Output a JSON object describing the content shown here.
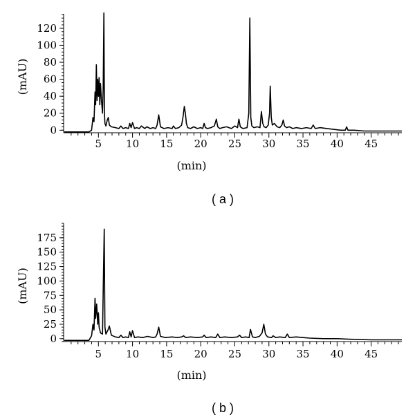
{
  "chart_data": [
    {
      "type": "line",
      "panel_label": "( a )",
      "xlabel": "(min)",
      "ylabel": "(mAU)",
      "xlim": [
        0,
        49.5
      ],
      "ylim": [
        -3,
        137
      ],
      "x_ticks": [
        5,
        10,
        15,
        20,
        25,
        30,
        35,
        40,
        45
      ],
      "y_ticks": [
        0,
        20,
        40,
        60,
        80,
        100,
        120
      ],
      "grid": false,
      "series": [
        {
          "x": [
            0,
            3.6,
            4.0,
            4.2,
            4.35,
            4.5,
            4.6,
            4.7,
            4.8,
            4.9,
            5.0,
            5.1,
            5.2,
            5.3,
            5.45,
            5.6,
            5.7,
            5.8,
            5.88,
            5.95,
            6.1,
            6.3,
            6.45,
            6.6,
            6.9,
            7.5,
            8.0,
            8.3,
            8.6,
            9.0,
            9.4,
            9.6,
            9.8,
            10.0,
            10.3,
            10.6,
            11.0,
            11.3,
            11.8,
            12.1,
            12.6,
            13.0,
            13.4,
            13.6,
            13.85,
            14.1,
            14.6,
            15.2,
            15.8,
            16.0,
            16.3,
            16.8,
            17.2,
            17.4,
            17.6,
            17.75,
            17.9,
            18.1,
            18.5,
            19.0,
            19.5,
            20.0,
            20.3,
            20.5,
            20.7,
            21.0,
            21.5,
            22.0,
            22.3,
            22.5,
            22.8,
            23.2,
            23.8,
            24.5,
            25.0,
            25.4,
            25.6,
            25.8,
            26.2,
            26.8,
            27.05,
            27.2,
            27.35,
            27.5,
            27.8,
            28.3,
            28.7,
            28.9,
            29.1,
            29.3,
            29.6,
            29.9,
            30.1,
            30.2,
            30.35,
            30.5,
            30.8,
            31.2,
            31.6,
            31.9,
            32.1,
            32.3,
            32.6,
            33.0,
            33.5,
            34.0,
            34.8,
            35.5,
            36.2,
            36.5,
            36.8,
            37.5,
            38.5,
            39.5,
            40.5,
            41.2,
            41.4,
            41.6,
            42.5,
            44.0,
            46.0,
            48.0,
            49.5
          ],
          "y": [
            -2,
            -2,
            0,
            15,
            10,
            45,
            30,
            77,
            35,
            60,
            40,
            62,
            30,
            55,
            35,
            20,
            50,
            138,
            20,
            8,
            5,
            12,
            15,
            6,
            4,
            3,
            2,
            5,
            2,
            3,
            2,
            8,
            3,
            9,
            2,
            3,
            2,
            5,
            2,
            4,
            2,
            3,
            2,
            6,
            18,
            4,
            2,
            3,
            2,
            5,
            2,
            3,
            6,
            15,
            28,
            20,
            8,
            3,
            2,
            4,
            2,
            3,
            2,
            8,
            3,
            2,
            3,
            5,
            13,
            4,
            2,
            3,
            4,
            2,
            5,
            3,
            13,
            4,
            2,
            3,
            20,
            132,
            15,
            5,
            3,
            4,
            3,
            22,
            8,
            4,
            3,
            6,
            20,
            52,
            15,
            6,
            8,
            4,
            3,
            6,
            12,
            5,
            3,
            4,
            2,
            3,
            2,
            3,
            2,
            6,
            2,
            3,
            2,
            1,
            0,
            0,
            4,
            0,
            0,
            -1,
            -1,
            -1,
            -1
          ]
        }
      ]
    },
    {
      "type": "line",
      "panel_label": "( b )",
      "xlabel": "(min)",
      "ylabel": "(mAU)",
      "xlim": [
        0,
        49.5
      ],
      "ylim": [
        -5,
        200
      ],
      "x_ticks": [
        5,
        10,
        15,
        20,
        25,
        30,
        35,
        40,
        45
      ],
      "y_ticks": [
        0,
        25,
        50,
        75,
        100,
        125,
        150,
        175
      ],
      "grid": false,
      "series": [
        {
          "x": [
            0,
            3.6,
            4.0,
            4.2,
            4.35,
            4.5,
            4.6,
            4.75,
            4.9,
            5.0,
            5.1,
            5.3,
            5.6,
            5.75,
            5.85,
            5.95,
            6.1,
            6.4,
            6.6,
            6.9,
            7.5,
            8.0,
            8.3,
            8.6,
            9.0,
            9.4,
            9.6,
            9.8,
            10.0,
            10.3,
            10.8,
            11.5,
            12.2,
            13.0,
            13.4,
            13.6,
            13.85,
            14.1,
            14.8,
            15.8,
            16.5,
            17.2,
            17.5,
            17.8,
            18.5,
            19.5,
            20.3,
            20.5,
            20.8,
            21.5,
            22.2,
            22.5,
            22.8,
            23.5,
            24.5,
            25.4,
            25.7,
            26.0,
            26.6,
            27.1,
            27.3,
            27.6,
            28.0,
            28.6,
            29.0,
            29.25,
            29.5,
            29.8,
            30.4,
            30.6,
            31.0,
            31.6,
            32.4,
            32.7,
            33.0,
            34.0,
            35.0,
            36.0,
            38.0,
            40.0,
            42.0,
            45.0,
            48.0,
            49.5
          ],
          "y": [
            -3,
            -3,
            5,
            25,
            15,
            70,
            35,
            60,
            25,
            45,
            20,
            10,
            8,
            120,
            190,
            20,
            8,
            15,
            22,
            6,
            3,
            2,
            6,
            2,
            3,
            2,
            12,
            3,
            14,
            2,
            3,
            2,
            4,
            2,
            3,
            8,
            20,
            4,
            2,
            3,
            2,
            3,
            5,
            2,
            3,
            2,
            3,
            6,
            2,
            3,
            2,
            8,
            2,
            3,
            2,
            3,
            6,
            2,
            3,
            2,
            16,
            3,
            2,
            4,
            10,
            25,
            8,
            3,
            2,
            5,
            2,
            3,
            2,
            8,
            2,
            3,
            2,
            1,
            0,
            0,
            -1,
            -2,
            -2,
            -2
          ]
        }
      ]
    }
  ]
}
